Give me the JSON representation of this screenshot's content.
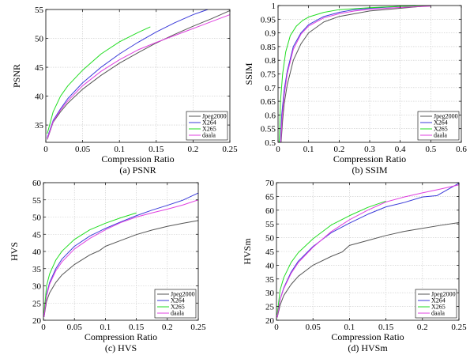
{
  "chart_data": [
    {
      "type": "line",
      "caption": "(a) PSNR",
      "xlabel": "Compression Ratio",
      "ylabel": "PSNR",
      "xlim": [
        0,
        0.25
      ],
      "ylim": [
        32,
        55
      ],
      "xticks": [
        0,
        0.05,
        0.1,
        0.15,
        0.2,
        0.25
      ],
      "xtick_labels": [
        "0",
        "0.05",
        "0.1",
        "0.15",
        "0.2",
        "0.25"
      ],
      "yticks": [
        35,
        40,
        45,
        50,
        55
      ],
      "ytick_labels": [
        "35",
        "40",
        "45",
        "50",
        "55"
      ],
      "grid": true,
      "legend_position": "bottom-right",
      "series": [
        {
          "name": "Jpeg2000",
          "color": "#555555",
          "x": [
            0.002,
            0.01,
            0.02,
            0.03,
            0.05,
            0.075,
            0.1,
            0.125,
            0.15,
            0.175,
            0.2,
            0.225,
            0.25
          ],
          "y": [
            32.5,
            35.5,
            37.3,
            38.8,
            41.2,
            43.6,
            45.7,
            47.5,
            49.2,
            50.7,
            52.1,
            53.4,
            54.8
          ]
        },
        {
          "name": "X264",
          "color": "#3b3bd9",
          "x": [
            0.002,
            0.01,
            0.02,
            0.03,
            0.05,
            0.075,
            0.1,
            0.125,
            0.15,
            0.175,
            0.2,
            0.22
          ],
          "y": [
            32.8,
            35.8,
            37.8,
            39.6,
            42.3,
            45,
            47.3,
            49.3,
            51.1,
            52.7,
            54.1,
            55
          ]
        },
        {
          "name": "X265",
          "color": "#22dd22",
          "x": [
            0.002,
            0.01,
            0.02,
            0.03,
            0.05,
            0.075,
            0.1,
            0.125,
            0.142
          ],
          "y": [
            33.5,
            37.3,
            40,
            41.8,
            44.5,
            47.3,
            49.4,
            51,
            52
          ]
        },
        {
          "name": "daala",
          "color": "#e040e0",
          "x": [
            0.002,
            0.01,
            0.02,
            0.03,
            0.05,
            0.075,
            0.1,
            0.125,
            0.15,
            0.175,
            0.2,
            0.225,
            0.25
          ],
          "y": [
            32.6,
            35.6,
            37.6,
            39.2,
            41.8,
            44.3,
            46.3,
            48,
            49.3,
            50.5,
            51.7,
            52.9,
            54.1
          ]
        }
      ]
    },
    {
      "type": "line",
      "caption": "(b) SSIM",
      "xlabel": "Compression Ratio",
      "ylabel": "SSIM",
      "xlim": [
        0,
        0.6
      ],
      "ylim": [
        0.5,
        1
      ],
      "xticks": [
        0,
        0.1,
        0.2,
        0.3,
        0.4,
        0.5,
        0.6
      ],
      "xtick_labels": [
        "0",
        "0.1",
        "0.2",
        "0.3",
        "0.4",
        "0.5",
        "0.6"
      ],
      "yticks": [
        0.5,
        0.55,
        0.6,
        0.65,
        0.7,
        0.75,
        0.8,
        0.85,
        0.9,
        0.95,
        1
      ],
      "ytick_labels": [
        "0.5",
        "0.55",
        "0.6",
        "0.65",
        "0.7",
        "0.75",
        "0.8",
        "0.85",
        "0.9",
        "0.95",
        "1"
      ],
      "grid": true,
      "legend_position": "bottom-right",
      "series": [
        {
          "name": "Jpeg2000",
          "color": "#555555",
          "x": [
            0.01,
            0.015,
            0.02,
            0.03,
            0.05,
            0.075,
            0.1,
            0.15,
            0.2,
            0.25,
            0.3,
            0.4,
            0.5
          ],
          "y": [
            0.5,
            0.58,
            0.64,
            0.71,
            0.8,
            0.86,
            0.9,
            0.94,
            0.96,
            0.97,
            0.98,
            0.99,
            1
          ]
        },
        {
          "name": "X264",
          "color": "#3b3bd9",
          "x": [
            0.008,
            0.012,
            0.02,
            0.03,
            0.05,
            0.075,
            0.1,
            0.15,
            0.2,
            0.25,
            0.3,
            0.4,
            0.45
          ],
          "y": [
            0.5,
            0.6,
            0.69,
            0.76,
            0.85,
            0.9,
            0.93,
            0.96,
            0.975,
            0.985,
            0.99,
            0.997,
            1
          ]
        },
        {
          "name": "X265",
          "color": "#22dd22",
          "x": [
            0.004,
            0.008,
            0.015,
            0.025,
            0.04,
            0.06,
            0.08,
            0.1,
            0.15,
            0.2,
            0.3,
            0.4,
            0.5
          ],
          "y": [
            0.5,
            0.65,
            0.75,
            0.83,
            0.89,
            0.925,
            0.945,
            0.958,
            0.975,
            0.985,
            0.992,
            0.997,
            1
          ]
        },
        {
          "name": "daala",
          "color": "#e040e0",
          "x": [
            0.009,
            0.014,
            0.02,
            0.03,
            0.05,
            0.075,
            0.1,
            0.15,
            0.2,
            0.25,
            0.3,
            0.4,
            0.5
          ],
          "y": [
            0.5,
            0.6,
            0.67,
            0.75,
            0.84,
            0.895,
            0.925,
            0.955,
            0.97,
            0.98,
            0.986,
            0.993,
            0.998
          ]
        }
      ]
    },
    {
      "type": "line",
      "caption": "(c) HVS",
      "xlabel": "Compression Ratio",
      "ylabel": "HVS",
      "xlim": [
        0,
        0.25
      ],
      "ylim": [
        20,
        60
      ],
      "xticks": [
        0,
        0.05,
        0.1,
        0.15,
        0.2,
        0.25
      ],
      "xtick_labels": [
        "0",
        "0.05",
        "0.1",
        "0.15",
        "0.2",
        "0.25"
      ],
      "yticks": [
        20,
        25,
        30,
        35,
        40,
        45,
        50,
        55,
        60
      ],
      "ytick_labels": [
        "20",
        "25",
        "30",
        "35",
        "40",
        "45",
        "50",
        "55",
        "60"
      ],
      "grid": true,
      "legend_position": "bottom-right",
      "series": [
        {
          "name": "Jpeg2000",
          "color": "#555555",
          "x": [
            0.001,
            0.005,
            0.01,
            0.02,
            0.03,
            0.05,
            0.075,
            0.09,
            0.1,
            0.125,
            0.15,
            0.175,
            0.2,
            0.225,
            0.25
          ],
          "y": [
            21,
            25.5,
            28,
            31,
            33.2,
            36.2,
            39,
            40.2,
            41.5,
            43.2,
            44.9,
            46.2,
            47.3,
            48.2,
            49
          ]
        },
        {
          "name": "X264",
          "color": "#3b3bd9",
          "x": [
            0.001,
            0.005,
            0.01,
            0.02,
            0.03,
            0.05,
            0.075,
            0.1,
            0.125,
            0.15,
            0.175,
            0.2,
            0.225,
            0.25
          ],
          "y": [
            21,
            27.5,
            31,
            35,
            37.8,
            41.5,
            44.5,
            46.7,
            48.6,
            50.4,
            52,
            53.4,
            54.9,
            57
          ]
        },
        {
          "name": "X265",
          "color": "#22dd22",
          "x": [
            0.001,
            0.005,
            0.01,
            0.02,
            0.03,
            0.05,
            0.075,
            0.1,
            0.125,
            0.15
          ],
          "y": [
            22,
            30,
            33.5,
            37.5,
            40.1,
            43.5,
            46.3,
            48.2,
            49.8,
            51.2
          ]
        },
        {
          "name": "daala",
          "color": "#e040e0",
          "x": [
            0.001,
            0.005,
            0.01,
            0.02,
            0.03,
            0.05,
            0.075,
            0.1,
            0.125,
            0.15,
            0.175,
            0.2,
            0.225,
            0.25
          ],
          "y": [
            21,
            27,
            30.5,
            34.4,
            37,
            40.7,
            43.8,
            46.3,
            48.4,
            50,
            51.2,
            52.3,
            53.5,
            55
          ]
        }
      ]
    },
    {
      "type": "line",
      "caption": "(d) HVSm",
      "xlabel": "Compression Ratio",
      "ylabel": "HVSm",
      "xlim": [
        0,
        0.25
      ],
      "ylim": [
        20,
        70
      ],
      "xticks": [
        0,
        0.05,
        0.1,
        0.15,
        0.2,
        0.25
      ],
      "xtick_labels": [
        "0",
        "0.05",
        "0.1",
        "0.15",
        "0.2",
        "0.25"
      ],
      "yticks": [
        20,
        25,
        30,
        35,
        40,
        45,
        50,
        55,
        60,
        65,
        70
      ],
      "ytick_labels": [
        "20",
        "25",
        "30",
        "35",
        "40",
        "45",
        "50",
        "55",
        "60",
        "65",
        "70"
      ],
      "grid": true,
      "legend_position": "bottom-right",
      "series": [
        {
          "name": "Jpeg2000",
          "color": "#555555",
          "x": [
            0.001,
            0.005,
            0.01,
            0.02,
            0.03,
            0.05,
            0.075,
            0.09,
            0.1,
            0.125,
            0.15,
            0.175,
            0.2,
            0.225,
            0.25
          ],
          "y": [
            21,
            25.5,
            29,
            33,
            36,
            40,
            43.2,
            44.8,
            47.2,
            49,
            50.8,
            52.3,
            53.4,
            54.5,
            55.5
          ]
        },
        {
          "name": "X264",
          "color": "#3b3bd9",
          "x": [
            0.001,
            0.005,
            0.01,
            0.02,
            0.03,
            0.05,
            0.075,
            0.1,
            0.125,
            0.15,
            0.175,
            0.2,
            0.22,
            0.25
          ],
          "y": [
            21,
            27.5,
            31.8,
            37.5,
            41.5,
            46.8,
            51.8,
            55.3,
            58.5,
            61.2,
            62.8,
            64.8,
            65.3,
            69.8
          ]
        },
        {
          "name": "X265",
          "color": "#22dd22",
          "x": [
            0.001,
            0.005,
            0.01,
            0.02,
            0.03,
            0.05,
            0.075,
            0.1,
            0.125,
            0.15
          ],
          "y": [
            22,
            31,
            35.5,
            41,
            44.6,
            49.6,
            54.6,
            58,
            61,
            63.3
          ]
        },
        {
          "name": "daala",
          "color": "#e040e0",
          "x": [
            0.001,
            0.005,
            0.01,
            0.02,
            0.03,
            0.05,
            0.075,
            0.1,
            0.125,
            0.15,
            0.175,
            0.2,
            0.225,
            0.25
          ],
          "y": [
            21,
            27.5,
            31.5,
            37,
            41,
            46.5,
            52.2,
            56.5,
            60,
            63,
            64.8,
            66.3,
            67.7,
            69.2
          ]
        }
      ]
    }
  ]
}
